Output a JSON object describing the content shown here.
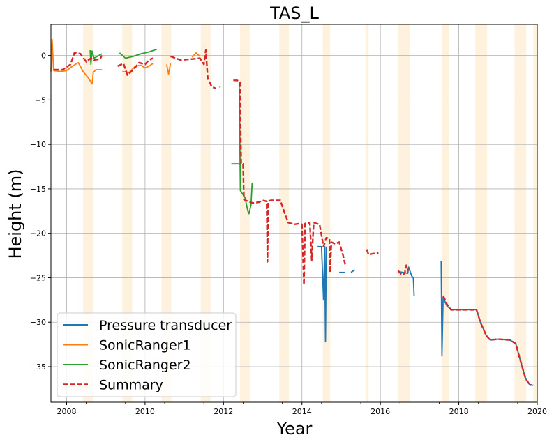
{
  "chart_data": {
    "type": "line",
    "title": "TAS_L",
    "xlabel": "Year",
    "ylabel": "Height (m)",
    "xlim": [
      2007.6,
      2020.0
    ],
    "ylim": [
      -39,
      3.5
    ],
    "grid": true,
    "legend_position": "lower-left",
    "x_ticks": [
      2008,
      2010,
      2012,
      2014,
      2016,
      2018,
      2020
    ],
    "x_tick_labels": [
      "2008",
      "2010",
      "2012",
      "2014",
      "2016",
      "2018",
      "2020"
    ],
    "y_ticks": [
      0,
      -5,
      -10,
      -15,
      -20,
      -25,
      -30,
      -35
    ],
    "y_tick_labels": [
      "0",
      "−5",
      "−10",
      "−15",
      "−20",
      "−25",
      "−30",
      "−35"
    ],
    "shaded_periods": [
      [
        2008.42,
        2008.67
      ],
      [
        2009.42,
        2009.67
      ],
      [
        2010.42,
        2010.67
      ],
      [
        2011.42,
        2011.67
      ],
      [
        2012.42,
        2012.67
      ],
      [
        2013.42,
        2013.67
      ],
      [
        2014.53,
        2014.72
      ],
      [
        2015.62,
        2015.7
      ],
      [
        2016.45,
        2016.75
      ],
      [
        2017.58,
        2017.75
      ],
      [
        2018.42,
        2018.72
      ],
      [
        2019.42,
        2019.72
      ],
      [
        2019.9,
        2020.0
      ]
    ],
    "series": [
      {
        "name": "Pressure transducer",
        "color": "#1f77b4",
        "style": "solid",
        "segments": [
          [
            [
              2012.2,
              -12.2
            ],
            [
              2012.42,
              -12.2
            ],
            [
              2012.42,
              -12.3
            ]
          ],
          [
            [
              2014.4,
              -21.5
            ],
            [
              2014.5,
              -21.5
            ],
            [
              2014.55,
              -27.5
            ],
            [
              2014.58,
              -21.5
            ],
            [
              2014.6,
              -32.2
            ],
            [
              2014.62,
              -21.5
            ]
          ],
          [
            [
              2014.95,
              -24.4
            ],
            [
              2015.1,
              -24.4
            ]
          ],
          [
            [
              2015.25,
              -24.4
            ],
            [
              2015.35,
              -24.1
            ]
          ],
          [
            [
              2016.45,
              -24.3
            ],
            [
              2016.7,
              -24.5
            ],
            [
              2016.72,
              -23.8
            ],
            [
              2016.8,
              -24.8
            ],
            [
              2016.84,
              -25.0
            ],
            [
              2016.86,
              -27.0
            ]
          ],
          [
            [
              2017.55,
              -23.1
            ],
            [
              2017.57,
              -33.8
            ],
            [
              2017.6,
              -27.2
            ],
            [
              2017.7,
              -28.2
            ],
            [
              2017.82,
              -28.6
            ],
            [
              2018.0,
              -28.6
            ],
            [
              2018.45,
              -28.6
            ],
            [
              2018.55,
              -30.0
            ],
            [
              2018.7,
              -31.5
            ],
            [
              2018.8,
              -32.0
            ],
            [
              2019.0,
              -31.9
            ],
            [
              2019.3,
              -32.0
            ],
            [
              2019.45,
              -32.4
            ],
            [
              2019.55,
              -34.0
            ],
            [
              2019.7,
              -36.3
            ],
            [
              2019.8,
              -37.0
            ],
            [
              2019.9,
              -37.1
            ]
          ]
        ]
      },
      {
        "name": "SonicRanger1",
        "color": "#ff7f0e",
        "style": "solid",
        "segments": [
          [
            [
              2007.6,
              -1.8
            ],
            [
              2007.63,
              1.8
            ],
            [
              2007.67,
              -1.7
            ],
            [
              2007.85,
              -1.8
            ],
            [
              2008.0,
              -1.7
            ],
            [
              2008.15,
              -1.2
            ],
            [
              2008.3,
              -0.8
            ],
            [
              2008.42,
              -1.8
            ],
            [
              2008.55,
              -2.5
            ],
            [
              2008.65,
              -3.2
            ],
            [
              2008.68,
              -1.9
            ],
            [
              2008.75,
              -1.6
            ],
            [
              2008.9,
              -1.6
            ]
          ],
          [
            [
              2009.42,
              -1.8
            ],
            [
              2009.6,
              -1.9
            ],
            [
              2009.75,
              -1.2
            ],
            [
              2009.9,
              -1.1
            ],
            [
              2010.0,
              -1.4
            ],
            [
              2010.1,
              -1.2
            ],
            [
              2010.2,
              -0.9
            ]
          ],
          [
            [
              2010.55,
              -1.0
            ],
            [
              2010.6,
              -2.1
            ],
            [
              2010.65,
              -0.9
            ]
          ],
          [
            [
              2011.2,
              -0.2
            ],
            [
              2011.3,
              0.3
            ],
            [
              2011.4,
              -0.1
            ]
          ]
        ]
      },
      {
        "name": "SonicRanger2",
        "color": "#2ca02c",
        "style": "solid",
        "segments": [
          [
            [
              2008.6,
              0.6
            ],
            [
              2008.62,
              -1.0
            ],
            [
              2008.65,
              0.5
            ],
            [
              2008.7,
              -0.3
            ],
            [
              2008.9,
              0.2
            ]
          ],
          [
            [
              2009.35,
              0.3
            ],
            [
              2009.5,
              -0.3
            ],
            [
              2009.7,
              -0.1
            ],
            [
              2009.9,
              0.2
            ],
            [
              2010.1,
              0.4
            ],
            [
              2010.3,
              0.7
            ]
          ],
          [
            [
              2011.9,
              -3.5
            ],
            [
              2011.92,
              -3.6
            ]
          ],
          [
            [
              2012.4,
              -3.2
            ],
            [
              2012.43,
              -15.2
            ],
            [
              2012.55,
              -16.0
            ],
            [
              2012.62,
              -17.5
            ],
            [
              2012.65,
              -17.8
            ],
            [
              2012.7,
              -16.8
            ],
            [
              2012.73,
              -14.3
            ]
          ]
        ]
      },
      {
        "name": "Summary",
        "color": "#d62728",
        "style": "dashed",
        "segments": [
          [
            [
              2007.67,
              -1.6
            ],
            [
              2007.9,
              -1.6
            ],
            [
              2008.1,
              -1.0
            ],
            [
              2008.2,
              0.3
            ],
            [
              2008.35,
              0.2
            ],
            [
              2008.5,
              -0.7
            ],
            [
              2008.62,
              -0.3
            ],
            [
              2008.7,
              -0.5
            ],
            [
              2008.85,
              -0.4
            ],
            [
              2008.9,
              0.0
            ]
          ],
          [
            [
              2009.3,
              -1.2
            ],
            [
              2009.45,
              -0.9
            ],
            [
              2009.55,
              -2.2
            ],
            [
              2009.7,
              -1.6
            ],
            [
              2009.85,
              -0.8
            ],
            [
              2010.0,
              -1.0
            ],
            [
              2010.1,
              -0.5
            ],
            [
              2010.2,
              -0.3
            ]
          ],
          [
            [
              2010.65,
              -0.1
            ],
            [
              2010.9,
              -0.5
            ],
            [
              2011.2,
              -0.4
            ],
            [
              2011.4,
              -0.3
            ],
            [
              2011.5,
              -1.0
            ],
            [
              2011.55,
              0.6
            ],
            [
              2011.6,
              -2.6
            ],
            [
              2011.7,
              -3.5
            ],
            [
              2011.8,
              -3.7
            ]
          ],
          [
            [
              2012.25,
              -2.8
            ],
            [
              2012.35,
              -2.8
            ],
            [
              2012.42,
              -3.0
            ],
            [
              2012.45,
              -12.2
            ],
            [
              2012.5,
              -12.2
            ],
            [
              2012.52,
              -16.2
            ],
            [
              2012.62,
              -16.4
            ],
            [
              2012.75,
              -16.6
            ],
            [
              2012.9,
              -16.5
            ],
            [
              2013.0,
              -16.3
            ],
            [
              2013.1,
              -16.4
            ],
            [
              2013.12,
              -23.2
            ],
            [
              2013.14,
              -16.4
            ],
            [
              2013.2,
              -16.3
            ],
            [
              2013.45,
              -16.3
            ],
            [
              2013.55,
              -17.6
            ],
            [
              2013.65,
              -18.8
            ],
            [
              2013.8,
              -19.0
            ],
            [
              2013.95,
              -18.9
            ],
            [
              2014.0,
              -19.0
            ],
            [
              2014.05,
              -25.8
            ],
            [
              2014.08,
              -18.9
            ],
            [
              2014.2,
              -18.8
            ],
            [
              2014.25,
              -23.0
            ],
            [
              2014.3,
              -18.8
            ],
            [
              2014.45,
              -19.0
            ],
            [
              2014.55,
              -21.5
            ],
            [
              2014.62,
              -20.5
            ],
            [
              2014.7,
              -20.6
            ],
            [
              2014.72,
              -24.4
            ],
            [
              2014.75,
              -21.0
            ],
            [
              2014.85,
              -21.2
            ],
            [
              2014.95,
              -21.0
            ],
            [
              2015.05,
              -22.5
            ],
            [
              2015.1,
              -23.5
            ]
          ],
          [
            [
              2015.65,
              -21.8
            ],
            [
              2015.7,
              -22.4
            ],
            [
              2015.8,
              -22.3
            ],
            [
              2015.95,
              -22.2
            ]
          ],
          [
            [
              2016.45,
              -24.2
            ],
            [
              2016.55,
              -24.7
            ],
            [
              2016.62,
              -24.5
            ],
            [
              2016.66,
              -23.6
            ],
            [
              2016.72,
              -24.2
            ]
          ],
          [
            [
              2017.6,
              -27.0
            ],
            [
              2017.7,
              -28.0
            ],
            [
              2017.8,
              -28.6
            ],
            [
              2018.0,
              -28.6
            ],
            [
              2018.45,
              -28.6
            ],
            [
              2018.55,
              -30.0
            ],
            [
              2018.7,
              -31.5
            ],
            [
              2018.8,
              -32.0
            ],
            [
              2019.0,
              -31.9
            ],
            [
              2019.3,
              -32.0
            ],
            [
              2019.45,
              -32.4
            ],
            [
              2019.55,
              -34.0
            ],
            [
              2019.7,
              -36.3
            ],
            [
              2019.8,
              -37.0
            ],
            [
              2019.85,
              -37.1
            ]
          ]
        ]
      }
    ]
  }
}
